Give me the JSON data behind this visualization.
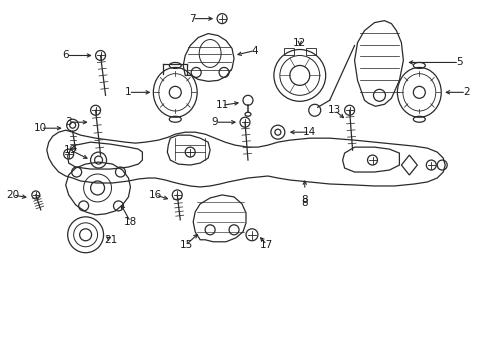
{
  "bg_color": "#ffffff",
  "line_color": "#2a2a2a",
  "text_color": "#1a1a1a",
  "figsize": [
    4.9,
    3.6
  ],
  "dpi": 100
}
